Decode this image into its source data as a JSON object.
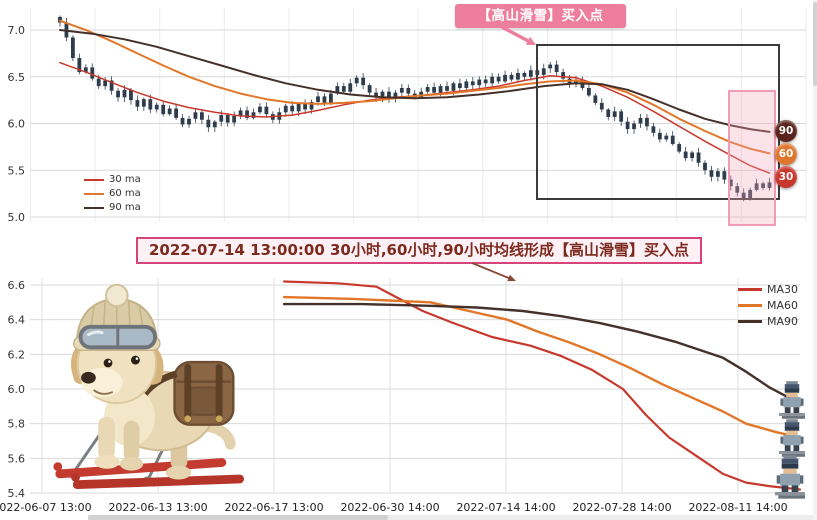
{
  "page": {
    "background": "#ffffff"
  },
  "colors": {
    "ma30": "#c8392d",
    "ma60": "#e2772a",
    "ma90": "#44312a",
    "candle": "#2e3d4d",
    "annotation_pink": "#ee7e9d",
    "banner_border": "#d6447c",
    "banner_text": "#7d2a1e",
    "highlight_box": "#3b3b3b",
    "highlight_zone": "#f29bb4",
    "grid": "#d9d9d9"
  },
  "chart_data": [
    {
      "type": "candlestick",
      "y_ticks": [
        "7.0",
        "6.5",
        "6.0",
        "5.5",
        "5.0"
      ],
      "ylim": [
        4.95,
        7.24
      ],
      "grid": "on",
      "legend_position": "bottom-left",
      "candle_color": "#2e3d4d",
      "candles_close": [
        7.08,
        6.92,
        6.7,
        6.55,
        6.6,
        6.48,
        6.4,
        6.46,
        6.35,
        6.28,
        6.36,
        6.25,
        6.18,
        6.26,
        6.15,
        6.2,
        6.1,
        6.16,
        6.06,
        5.99,
        6.05,
        6.12,
        6.04,
        5.96,
        6.02,
        6.09,
        6.01,
        6.08,
        6.14,
        6.06,
        6.12,
        6.18,
        6.1,
        6.04,
        6.12,
        6.19,
        6.13,
        6.21,
        6.15,
        6.23,
        6.29,
        6.22,
        6.32,
        6.4,
        6.34,
        6.43,
        6.49,
        6.41,
        6.33,
        6.28,
        6.34,
        6.27,
        6.33,
        6.38,
        6.32,
        6.28,
        6.34,
        6.39,
        6.33,
        6.4,
        6.35,
        6.43,
        6.38,
        6.45,
        6.41,
        6.47,
        6.43,
        6.5,
        6.45,
        6.52,
        6.47,
        6.54,
        6.5,
        6.57,
        6.52,
        6.59,
        6.63,
        6.55,
        6.48,
        6.42,
        6.47,
        6.38,
        6.3,
        6.22,
        6.15,
        6.07,
        6.13,
        6.02,
        5.94,
        6.0,
        6.06,
        5.97,
        5.9,
        5.83,
        5.87,
        5.78,
        5.7,
        5.63,
        5.69,
        5.58,
        5.5,
        5.43,
        5.49,
        5.4,
        5.33,
        5.26,
        5.2,
        5.29,
        5.36,
        5.31,
        5.37
      ],
      "series": [
        {
          "name": "30 ma",
          "color": "#c8392d",
          "points": [
            [
              0,
              6.65
            ],
            [
              4,
              6.55
            ],
            [
              8,
              6.44
            ],
            [
              12,
              6.33
            ],
            [
              16,
              6.24
            ],
            [
              20,
              6.17
            ],
            [
              24,
              6.12
            ],
            [
              28,
              6.08
            ],
            [
              32,
              6.07
            ],
            [
              36,
              6.09
            ],
            [
              40,
              6.14
            ],
            [
              44,
              6.2
            ],
            [
              48,
              6.25
            ],
            [
              52,
              6.28
            ],
            [
              56,
              6.3
            ],
            [
              60,
              6.33
            ],
            [
              64,
              6.36
            ],
            [
              68,
              6.4
            ],
            [
              72,
              6.46
            ],
            [
              76,
              6.51
            ],
            [
              80,
              6.49
            ],
            [
              84,
              6.4
            ],
            [
              88,
              6.28
            ],
            [
              92,
              6.13
            ],
            [
              96,
              5.97
            ],
            [
              100,
              5.81
            ],
            [
              104,
              5.66
            ],
            [
              107,
              5.55
            ],
            [
              110,
              5.47
            ]
          ]
        },
        {
          "name": "60 ma",
          "color": "#e2772a",
          "points": [
            [
              0,
              7.1
            ],
            [
              4,
              7.0
            ],
            [
              8,
              6.88
            ],
            [
              12,
              6.75
            ],
            [
              16,
              6.62
            ],
            [
              20,
              6.5
            ],
            [
              24,
              6.4
            ],
            [
              28,
              6.32
            ],
            [
              32,
              6.26
            ],
            [
              36,
              6.22
            ],
            [
              40,
              6.21
            ],
            [
              44,
              6.22
            ],
            [
              48,
              6.24
            ],
            [
              52,
              6.27
            ],
            [
              56,
              6.3
            ],
            [
              60,
              6.32
            ],
            [
              64,
              6.35
            ],
            [
              68,
              6.38
            ],
            [
              72,
              6.42
            ],
            [
              76,
              6.45
            ],
            [
              80,
              6.46
            ],
            [
              84,
              6.42
            ],
            [
              88,
              6.33
            ],
            [
              92,
              6.2
            ],
            [
              96,
              6.05
            ],
            [
              100,
              5.92
            ],
            [
              104,
              5.8
            ],
            [
              107,
              5.73
            ],
            [
              110,
              5.68
            ]
          ]
        },
        {
          "name": "90 ma",
          "color": "#44312a",
          "points": [
            [
              0,
              7.0
            ],
            [
              5,
              6.96
            ],
            [
              10,
              6.9
            ],
            [
              15,
              6.82
            ],
            [
              20,
              6.72
            ],
            [
              25,
              6.62
            ],
            [
              30,
              6.52
            ],
            [
              35,
              6.43
            ],
            [
              40,
              6.36
            ],
            [
              45,
              6.31
            ],
            [
              50,
              6.28
            ],
            [
              55,
              6.27
            ],
            [
              60,
              6.28
            ],
            [
              65,
              6.31
            ],
            [
              70,
              6.35
            ],
            [
              75,
              6.4
            ],
            [
              80,
              6.43
            ],
            [
              84,
              6.42
            ],
            [
              88,
              6.36
            ],
            [
              92,
              6.26
            ],
            [
              96,
              6.15
            ],
            [
              100,
              6.05
            ],
            [
              104,
              5.98
            ],
            [
              107,
              5.94
            ],
            [
              110,
              5.91
            ]
          ]
        }
      ]
    },
    {
      "type": "line",
      "y_ticks": [
        "6.6",
        "6.4",
        "6.2",
        "6.0",
        "5.8",
        "5.6",
        "5.4"
      ],
      "ylim": [
        5.33,
        6.68
      ],
      "grid": "on",
      "legend_position": "top-right",
      "x_ticks": [
        "2022-06-07 13:00",
        "2022-06-13 13:00",
        "2022-06-17 13:00",
        "2022-06-30 14:00",
        "2022-07-14 14:00",
        "2022-07-28 14:00",
        "2022-08-11 14:00"
      ],
      "series": [
        {
          "name": "MA30",
          "color": "#c8392d",
          "points": [
            [
              0.33,
              6.62
            ],
            [
              0.4,
              6.61
            ],
            [
              0.45,
              6.59
            ],
            [
              0.48,
              6.52
            ],
            [
              0.51,
              6.45
            ],
            [
              0.55,
              6.38
            ],
            [
              0.6,
              6.3
            ],
            [
              0.65,
              6.25
            ],
            [
              0.69,
              6.19
            ],
            [
              0.73,
              6.11
            ],
            [
              0.77,
              6.0
            ],
            [
              0.8,
              5.85
            ],
            [
              0.83,
              5.72
            ],
            [
              0.87,
              5.6
            ],
            [
              0.9,
              5.51
            ],
            [
              0.93,
              5.46
            ],
            [
              0.96,
              5.44
            ],
            [
              1.0,
              5.42
            ]
          ]
        },
        {
          "name": "MA60",
          "color": "#e2772a",
          "points": [
            [
              0.33,
              6.53
            ],
            [
              0.42,
              6.52
            ],
            [
              0.52,
              6.5
            ],
            [
              0.57,
              6.45
            ],
            [
              0.62,
              6.4
            ],
            [
              0.66,
              6.33
            ],
            [
              0.7,
              6.27
            ],
            [
              0.74,
              6.2
            ],
            [
              0.78,
              6.12
            ],
            [
              0.82,
              6.03
            ],
            [
              0.86,
              5.95
            ],
            [
              0.9,
              5.87
            ],
            [
              0.93,
              5.8
            ],
            [
              0.97,
              5.75
            ],
            [
              1.0,
              5.72
            ]
          ]
        },
        {
          "name": "MA90",
          "color": "#44312a",
          "points": [
            [
              0.33,
              6.49
            ],
            [
              0.43,
              6.49
            ],
            [
              0.52,
              6.48
            ],
            [
              0.58,
              6.47
            ],
            [
              0.64,
              6.45
            ],
            [
              0.69,
              6.42
            ],
            [
              0.74,
              6.38
            ],
            [
              0.79,
              6.33
            ],
            [
              0.84,
              6.27
            ],
            [
              0.9,
              6.18
            ],
            [
              0.93,
              6.1
            ],
            [
              0.96,
              6.01
            ],
            [
              0.99,
              5.94
            ],
            [
              1.0,
              5.91
            ]
          ]
        }
      ]
    }
  ],
  "annotations": {
    "buy_point_label": "【高山滑雪】买入点",
    "banner_text": "2022-07-14 13:00:00 30小时,60小时,90小时均线形成【高山滑雪】买入点",
    "badges": [
      {
        "label": "90",
        "color": "#5a241c"
      },
      {
        "label": "60",
        "color": "#e0762c"
      },
      {
        "label": "30",
        "color": "#c9362c"
      }
    ]
  },
  "icons": {
    "ski_dog": "ski-dog-illustration",
    "pixel_skier": "pixel-skier-icon",
    "arrow_pink": "arrow-down-right-icon",
    "arrow_dark": "arrow-down-right-icon"
  }
}
